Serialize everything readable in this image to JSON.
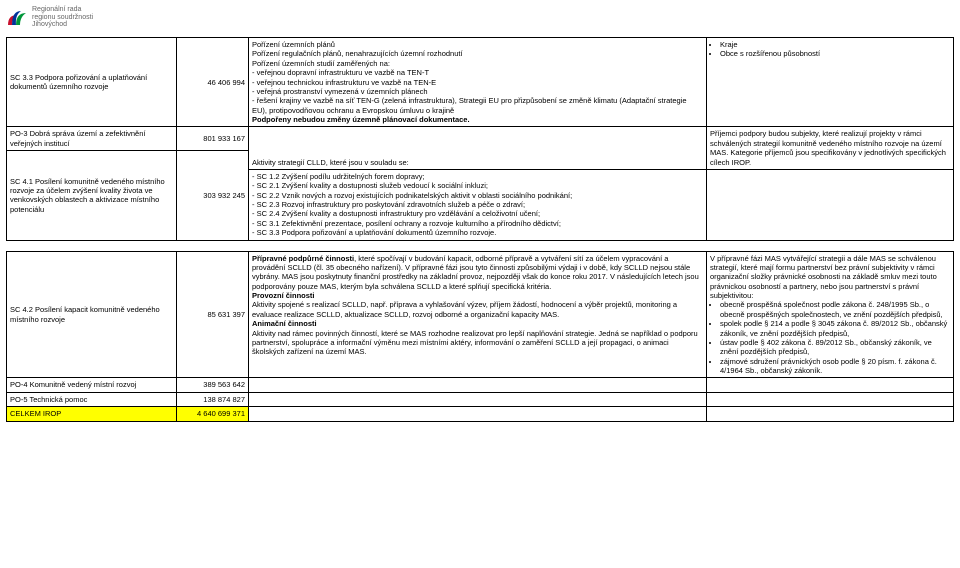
{
  "logo": {
    "line1": "Regionální rada",
    "line2": "regionu soudržnosti",
    "line3": "Jihovýchod",
    "red": "#c8102e",
    "blue": "#003399",
    "green": "#009639"
  },
  "cols": {
    "c1": 170,
    "c2": 70,
    "c3": 450,
    "c4": 240
  },
  "rows": {
    "r1": {
      "label": "SC 3.3 Podpora pořizování a uplatňování dokumentů územního rozvoje",
      "amount": "46 406 994",
      "desc": "  Pořízení územních plánů\n  Pořízení regulačních plánů, nenahrazujících územní rozhodnutí\n  Pořízení územních studií zaměřených na:\n- veřejnou dopravní infrastrukturu ve vazbě na TEN-T\n- veřejnou technickou infrastrukturu ve vazbě na TEN-E\n- veřejná prostranství vymezená v územních plánech\n- řešení krajiny ve vazbě na síť TEN-G (zelená infrastruktura), Strategii EU pro přizpůsobení se změně klimatu (Adaptační strategie EU), protipovodňovou ochranu a Evropskou úmluvu o krajině\nPodpořeny nebudou změny územně plánovací dokumentace.",
      "right_bullets": [
        "Kraje",
        "Obce s rozšířenou působností"
      ]
    },
    "r2": {
      "label": "PO-3 Dobrá správa území a zefektivnění veřejných institucí",
      "amount": "801 933 167"
    },
    "r3": {
      "desc": "  Aktivity strategií CLLD, které jsou v souladu se:",
      "right": "Příjemci podpory budou subjekty, které realizují projekty v rámci schválených strategií komunitně vedeného místního rozvoje na území MAS. Kategorie příjemců jsou specifikovány v jednotlivých specifických cílech IROP."
    },
    "r4": {
      "label": "SC 4.1 Posílení komunitně vedeného místního rozvoje za účelem zvýšení kvality života ve venkovských oblastech a aktivizace místního potenciálu",
      "amount": "303 932 245",
      "desc": "- SC 1.2 Zvýšení podílu udržitelných forem dopravy;\n- SC 2.1 Zvýšení kvality a dostupnosti služeb vedoucí k sociální inkluzi;\n- SC 2.2 Vznik nových a rozvoj existujících podnikatelských aktivit v oblasti sociálního podnikání;\n- SC 2.3 Rozvoj infrastruktury pro poskytování zdravotních služeb a péče o zdraví;\n- SC 2.4 Zvýšení kvality a dostupnosti infrastruktury pro vzdělávání a celoživotní učení;\n- SC 3.1 Zefektivnění prezentace, posílení ochrany a rozvoje kulturního a přírodního dědictví;\n- SC 3.3 Podpora pořizování a uplatňování dokumentů územního rozvoje."
    },
    "r5": {
      "label": "SC 4.2 Posílení kapacit komunitně vedeného místního rozvoje",
      "amount": "85 631 397",
      "desc_p1_lead": "  Přípravné podpůrné činnosti",
      "desc_p1": ", které spočívají v budování kapacit, odborné přípravě a vytváření sítí za účelem vypracování a provádění SCLLD (čl. 35 obecného nařízení). V přípravné fázi jsou tyto činnosti způsobilými výdaji i v době, kdy SCLLD nejsou stále vybrány. MAS jsou poskytnuty finanční prostředky na základní provoz, nejpozději však do konce roku 2017. V následujících letech jsou podporovány pouze MAS, kterým byla schválena SCLLD a které splňují specifická kritéria.",
      "desc_p2_lead": "  Provozní činnosti",
      "desc_p2": "Aktivity spojené s realizací SCLLD, např. příprava a vyhlašování výzev, příjem žádostí, hodnocení a výběr projektů, monitoring a evaluace realizace SCLLD, aktualizace SCLLD, rozvoj odborné a organizační kapacity MAS.",
      "desc_p3_lead": "  Animační činnosti",
      "desc_p3": "Aktivity nad rámec povinných činností, které se MAS rozhodne realizovat pro lepší naplňování strategie. Jedná se například o podporu partnerství, spolupráce a informační výměnu mezi místními aktéry, informování o zaměření SCLLD a její propagaci, o animaci školských zařízení na území MAS.",
      "right_intro": "V přípravné fázi MAS vytvářející strategii a dále MAS se schválenou strategií, které mají formu partnerství bez právní subjektivity v rámci organizační složky právnické osobnosti na základě smluv mezi touto právnickou osobností a partnery, nebo jsou partnerství s právní subjektivitou:",
      "right_bullets": [
        "obecně prospěšná společnost podle zákona č. 248/1995 Sb., o obecně prospěšných společnostech, ve znění pozdějších předpisů,",
        "spolek podle § 214 a podle § 3045 zákona č. 89/2012 Sb., občanský zákoník, ve znění pozdějších předpisů,",
        "ústav podle § 402 zákona č. 89/2012 Sb., občanský zákoník, ve znění pozdějších předpisů,",
        "zájmové sdružení právnických osob podle § 20 písm. f. zákona č. 4/1964 Sb., občanský zákoník."
      ]
    },
    "r6": {
      "label": "PO-4 Komunitně vedený místní rozvoj",
      "amount": "389 563 642"
    },
    "r7": {
      "label": "PO-5 Technická pomoc",
      "amount": "138 874 827"
    },
    "r8": {
      "label": "CELKEM IROP",
      "amount": "4 640 699 371"
    }
  }
}
